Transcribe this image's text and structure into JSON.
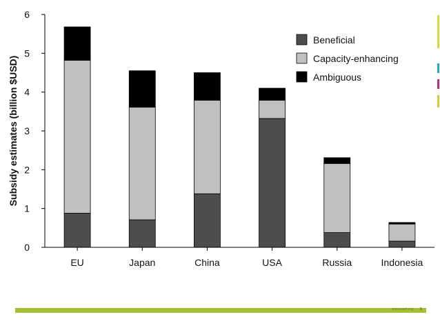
{
  "chart_data": {
    "type": "bar",
    "stacked": true,
    "title": "",
    "xlabel": "",
    "ylabel": "Subsidy estimates (billion $USD)",
    "ylim": [
      0,
      6
    ],
    "yticks": [
      0,
      1,
      2,
      3,
      4,
      5,
      6
    ],
    "categories": [
      "EU",
      "Japan",
      "China",
      "USA",
      "Russia",
      "Indonesia"
    ],
    "series": [
      {
        "name": "Beneficial",
        "color": "#4d4d4d",
        "values": [
          0.88,
          0.71,
          1.38,
          3.32,
          0.38,
          0.16
        ]
      },
      {
        "name": "Capacity-enhancing",
        "color": "#c0c0c0",
        "values": [
          3.94,
          2.9,
          2.41,
          0.47,
          1.78,
          0.44
        ]
      },
      {
        "name": "Ambiguous",
        "color": "#000000",
        "values": [
          0.86,
          0.94,
          0.71,
          0.31,
          0.15,
          0.04
        ]
      }
    ],
    "legend": "top-right"
  },
  "footer": {
    "url": "www.sed.org",
    "page": "6",
    "bar_color": "#a4bf34"
  },
  "accents": [
    "#d8d83c",
    "#2aa7c9",
    "#b0357d",
    "#d8c83c"
  ]
}
